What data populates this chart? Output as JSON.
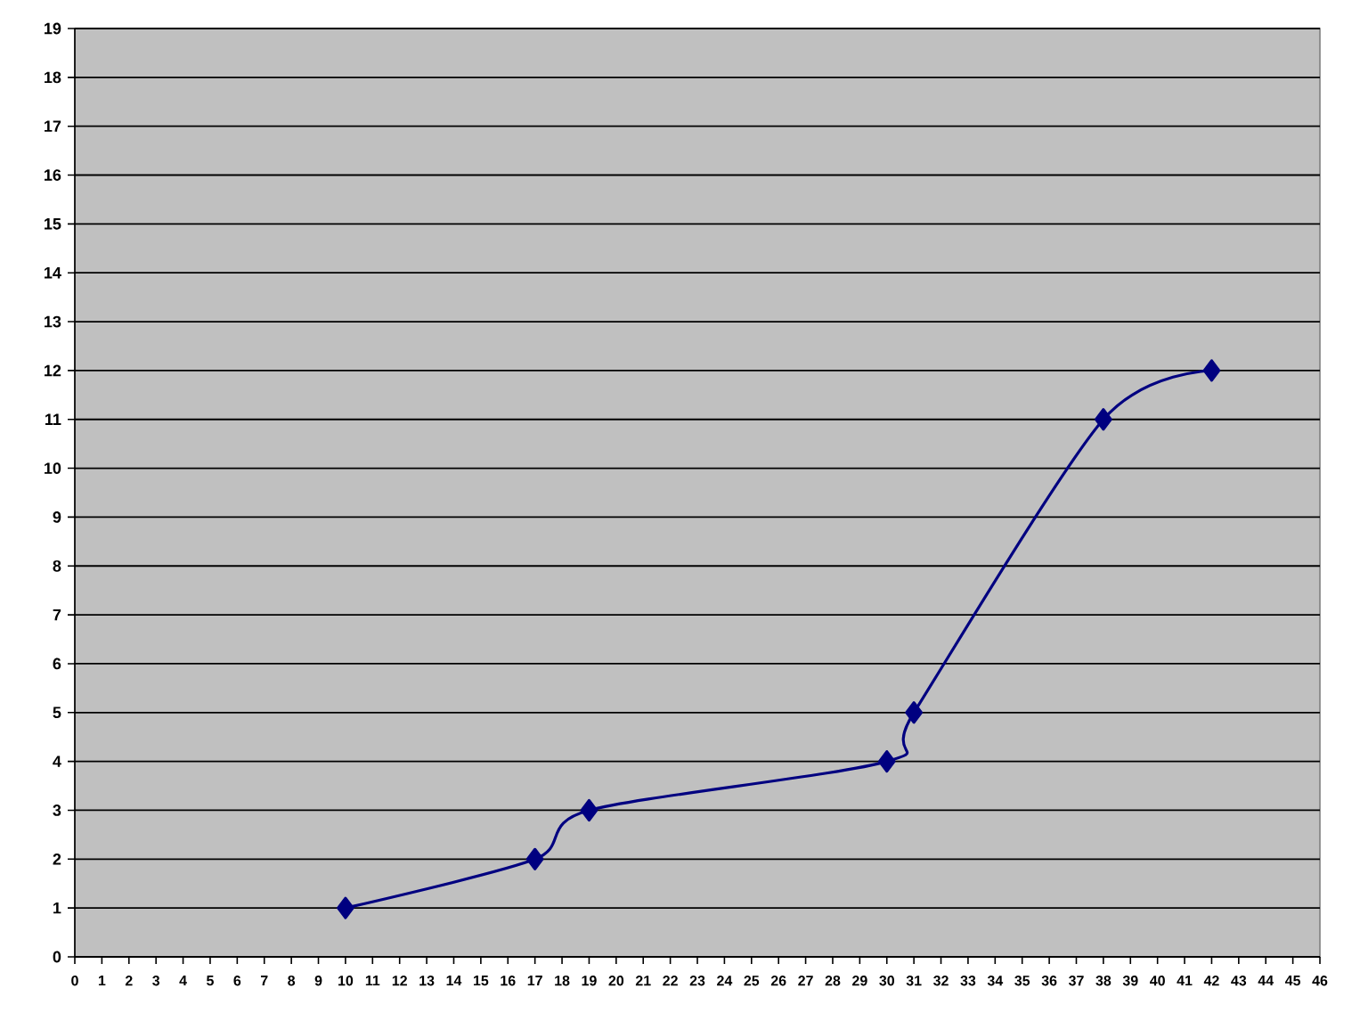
{
  "chart_data": {
    "type": "line",
    "x": [
      10,
      17,
      19,
      30,
      31,
      38,
      42
    ],
    "values": [
      1,
      2,
      3,
      4,
      5,
      11,
      12
    ],
    "color": "#000080",
    "marker": "diamond",
    "grid": "y",
    "xlim": [
      0,
      46
    ],
    "ylim": [
      0,
      19
    ],
    "xticks": [
      0,
      1,
      2,
      3,
      4,
      5,
      6,
      7,
      8,
      9,
      10,
      11,
      12,
      13,
      14,
      15,
      16,
      17,
      18,
      19,
      20,
      21,
      22,
      23,
      24,
      25,
      26,
      27,
      28,
      29,
      30,
      31,
      32,
      33,
      34,
      35,
      36,
      37,
      38,
      39,
      40,
      41,
      42,
      43,
      44,
      45,
      46
    ],
    "yticks": [
      0,
      1,
      2,
      3,
      4,
      5,
      6,
      7,
      8,
      9,
      10,
      11,
      12,
      13,
      14,
      15,
      16,
      17,
      18,
      19
    ]
  }
}
